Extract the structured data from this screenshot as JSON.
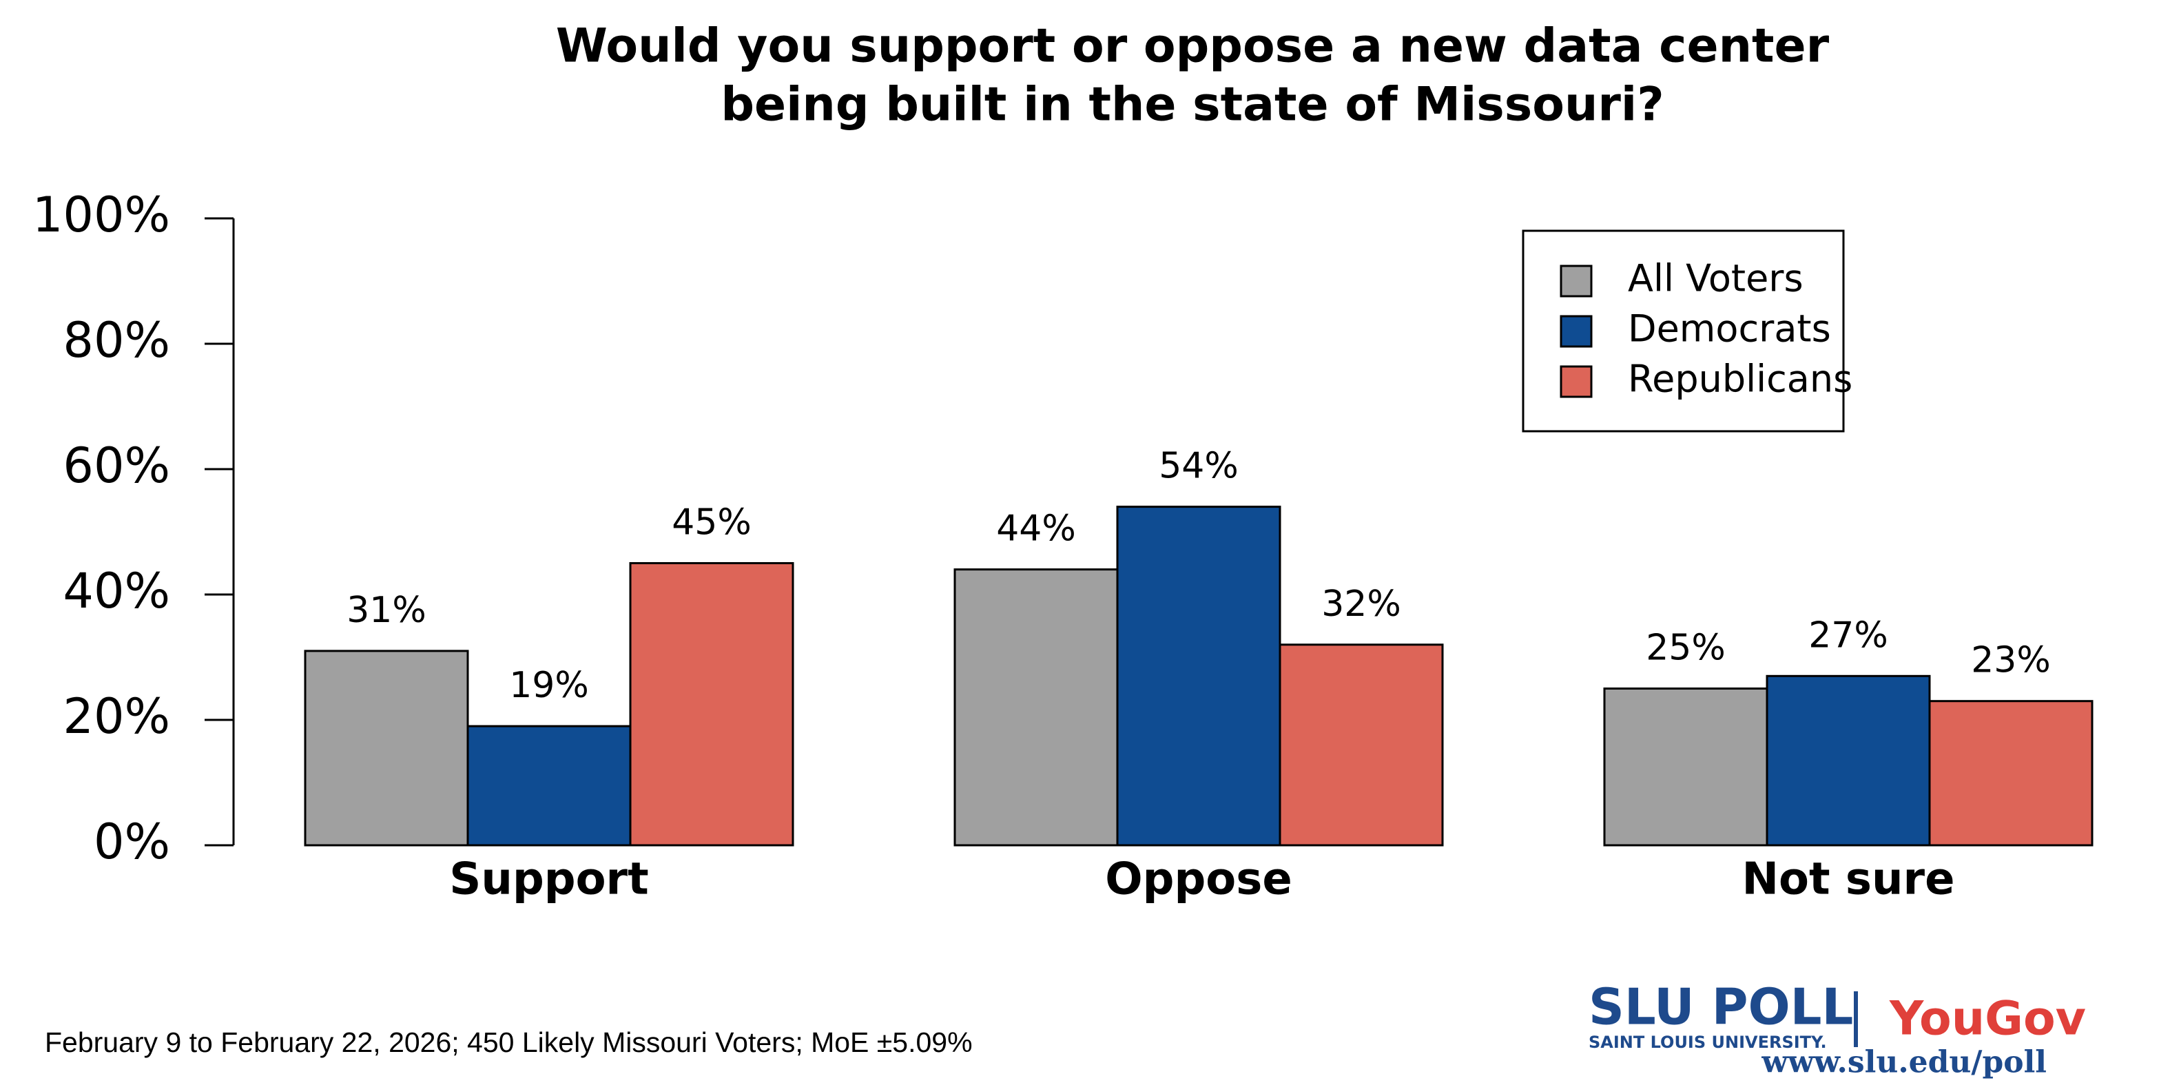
{
  "chart_data": {
    "type": "bar",
    "title": [
      "Would you support or oppose a new data center",
      "being built in the state of Missouri?"
    ],
    "categories": [
      "Support",
      "Oppose",
      "Not sure"
    ],
    "series": [
      {
        "name": "All Voters",
        "color": "#a0a0a0",
        "values": [
          31,
          44,
          25
        ],
        "value_labels": [
          "31%",
          "44%",
          "25%"
        ]
      },
      {
        "name": "Democrats",
        "color": "#0f4c92",
        "values": [
          19,
          54,
          27
        ],
        "value_labels": [
          "19%",
          "54%",
          "27%"
        ]
      },
      {
        "name": "Republicans",
        "color": "#dd6558",
        "values": [
          45,
          32,
          23
        ],
        "value_labels": [
          "45%",
          "32%",
          "23%"
        ]
      }
    ],
    "ylim": [
      0,
      100
    ],
    "yticks": [
      {
        "value": 0,
        "label": "0%"
      },
      {
        "value": 20,
        "label": "20%"
      },
      {
        "value": 40,
        "label": "40%"
      },
      {
        "value": 60,
        "label": "60%"
      },
      {
        "value": 80,
        "label": "80%"
      },
      {
        "value": 100,
        "label": "100%"
      }
    ],
    "grid": false,
    "legend": "top-right",
    "footnote": "February 9 to February 22, 2026; 450 Likely Missouri Voters; MoE ±5.09%",
    "branding": {
      "slu_poll": "SLU POLL",
      "university": "SAINT LOUIS UNIVERSITY.",
      "yougov": "YouGov",
      "url": "www.slu.edu/poll"
    }
  }
}
